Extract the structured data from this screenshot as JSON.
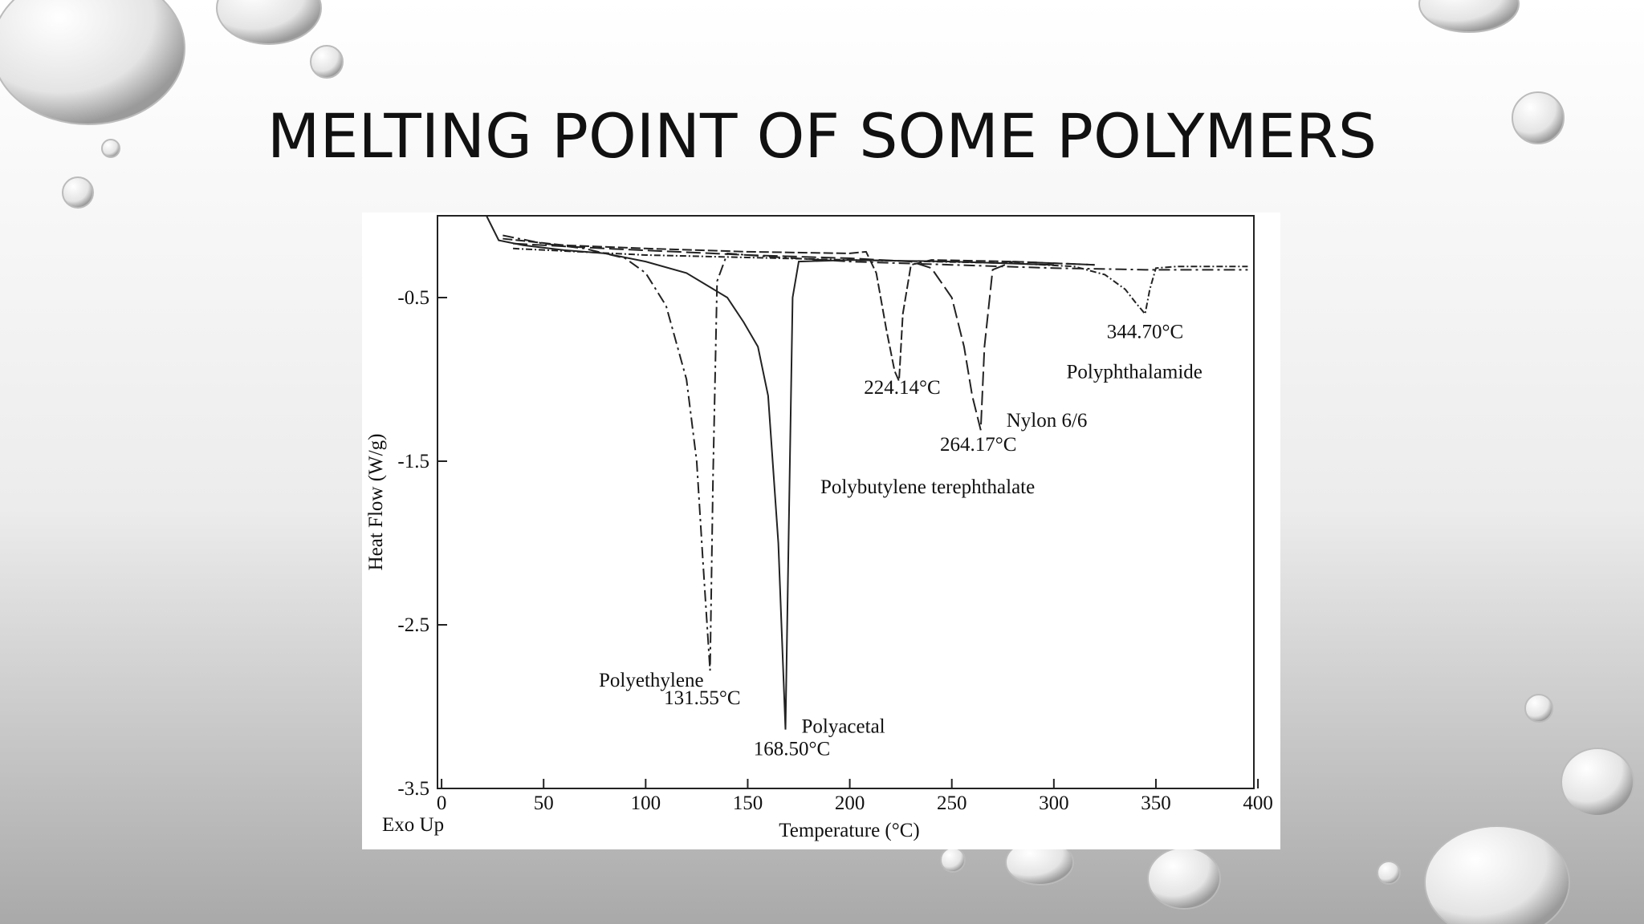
{
  "chart_data": {
    "type": "line",
    "title": "MELTING POINT OF SOME POLYMERS",
    "xlabel": "Temperature (°C)",
    "ylabel": "Heat Flow (W/g)",
    "note": "Exo Up",
    "xlim": [
      -2,
      398
    ],
    "ylim": [
      -3.5,
      0
    ],
    "xticks": [
      0,
      50,
      100,
      150,
      200,
      250,
      300,
      350,
      400
    ],
    "yticks": [
      -0.5,
      -1.5,
      -2.5,
      -3.5
    ],
    "series": [
      {
        "name": "Polyethylene",
        "peak_label": "131.55°C",
        "color": "#222",
        "dash": "14 5 3 5",
        "x": [
          30,
          50,
          70,
          90,
          100,
          110,
          120,
          125,
          128,
          131.55,
          133,
          135,
          140,
          160,
          200,
          250,
          300,
          345,
          395
        ],
        "values": [
          -0.12,
          -0.17,
          -0.2,
          -0.26,
          -0.35,
          -0.55,
          -1.0,
          -1.5,
          -2.1,
          -2.78,
          -1.6,
          -0.4,
          -0.23,
          -0.25,
          -0.28,
          -0.3,
          -0.32,
          -0.33,
          -0.33
        ]
      },
      {
        "name": "Polyacetal",
        "peak_label": "168.50°C",
        "color": "#222",
        "dash": "",
        "x": [
          22,
          28,
          40,
          60,
          80,
          100,
          120,
          140,
          148,
          155,
          160,
          165,
          168.5,
          170,
          172,
          175,
          200,
          250,
          300
        ],
        "values": [
          0,
          -0.15,
          -0.18,
          -0.21,
          -0.23,
          -0.28,
          -0.35,
          -0.5,
          -0.65,
          -0.8,
          -1.1,
          -2.0,
          -3.14,
          -2.0,
          -0.5,
          -0.28,
          -0.27,
          -0.28,
          -0.3
        ]
      },
      {
        "name": "Polybutylene terephthalate",
        "peak_label": "224.14°C",
        "color": "#222",
        "dash": "12 4",
        "x": [
          30,
          60,
          100,
          150,
          200,
          208,
          213,
          218,
          222,
          224.14,
          226,
          230,
          240,
          280,
          320
        ],
        "values": [
          -0.14,
          -0.18,
          -0.2,
          -0.22,
          -0.23,
          -0.22,
          -0.35,
          -0.7,
          -0.95,
          -1.01,
          -0.6,
          -0.3,
          -0.27,
          -0.28,
          -0.3
        ]
      },
      {
        "name": "Nylon 6/6",
        "peak_label": "264.17°C",
        "color": "#222",
        "dash": "18 6",
        "x": [
          35,
          80,
          150,
          200,
          230,
          240,
          250,
          256,
          260,
          264.17,
          266,
          270,
          280,
          320
        ],
        "values": [
          -0.17,
          -0.2,
          -0.24,
          -0.26,
          -0.28,
          -0.32,
          -0.5,
          -0.8,
          -1.1,
          -1.31,
          -0.8,
          -0.33,
          -0.28,
          -0.3
        ]
      },
      {
        "name": "Polyphthalamide",
        "peak_label": "344.70°C",
        "color": "#222",
        "dash": "8 3 2 3",
        "x": [
          35,
          100,
          200,
          280,
          310,
          325,
          335,
          340,
          344.7,
          347,
          350,
          360,
          395
        ],
        "values": [
          -0.2,
          -0.24,
          -0.27,
          -0.29,
          -0.31,
          -0.36,
          -0.45,
          -0.53,
          -0.6,
          -0.45,
          -0.32,
          -0.31,
          -0.31
        ]
      }
    ]
  }
}
